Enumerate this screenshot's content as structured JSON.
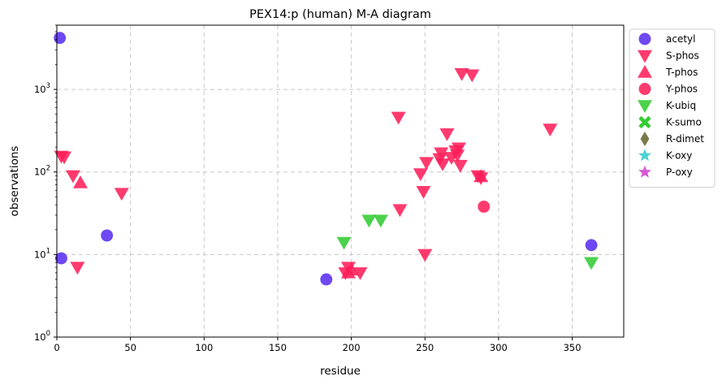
{
  "chart_data": {
    "type": "scatter",
    "title": "PEX14:p (human) M-A diagram",
    "xlabel": "residue",
    "ylabel": "observations",
    "xlim": [
      0,
      385
    ],
    "ylim": [
      1,
      6000
    ],
    "yscale": "log",
    "grid": true,
    "grid_style": "dashed",
    "legend_position": "outside-right",
    "x_ticks": [
      "0",
      "50",
      "100",
      "150",
      "200",
      "250",
      "300",
      "350"
    ],
    "y_ticks": [
      {
        "value": 1,
        "base": "10",
        "exp": "0"
      },
      {
        "value": 10,
        "base": "10",
        "exp": "1"
      },
      {
        "value": 100,
        "base": "10",
        "exp": "2"
      },
      {
        "value": 1000,
        "base": "10",
        "exp": "3"
      }
    ],
    "series": [
      {
        "name": "acetyl",
        "marker": "circle",
        "color": "#5a2ff0",
        "points": [
          [
            2,
            4200
          ],
          [
            3,
            9
          ],
          [
            34,
            17
          ],
          [
            183,
            5
          ],
          [
            363,
            13
          ]
        ]
      },
      {
        "name": "S-phos",
        "marker": "triangle-down",
        "color": "#ff1f5a",
        "points": [
          [
            3,
            155
          ],
          [
            5,
            152
          ],
          [
            11,
            90
          ],
          [
            14,
            7
          ],
          [
            44,
            55
          ],
          [
            196,
            6
          ],
          [
            198,
            7
          ],
          [
            206,
            6
          ],
          [
            232,
            460
          ],
          [
            233,
            35
          ],
          [
            247,
            95
          ],
          [
            249,
            58
          ],
          [
            250,
            10
          ],
          [
            251,
            130
          ],
          [
            260,
            145
          ],
          [
            261,
            170
          ],
          [
            262,
            125
          ],
          [
            265,
            290
          ],
          [
            268,
            150
          ],
          [
            271,
            180
          ],
          [
            272,
            160
          ],
          [
            273,
            195
          ],
          [
            274,
            120
          ],
          [
            275,
            1550
          ],
          [
            282,
            1500
          ],
          [
            286,
            90
          ],
          [
            288,
            85
          ],
          [
            335,
            330
          ]
        ]
      },
      {
        "name": "T-phos",
        "marker": "triangle-up",
        "color": "#ff1f5a",
        "points": [
          [
            16,
            74
          ],
          [
            198,
            6
          ],
          [
            200,
            6.5
          ],
          [
            288,
            88
          ]
        ]
      },
      {
        "name": "Y-phos",
        "marker": "circle",
        "color": "#ff1f5a",
        "points": [
          [
            290,
            38
          ]
        ]
      },
      {
        "name": "K-ubiq",
        "marker": "triangle-down",
        "color": "#33cc33",
        "points": [
          [
            195,
            14
          ],
          [
            212,
            26
          ],
          [
            220,
            26
          ],
          [
            363,
            8
          ]
        ]
      },
      {
        "name": "K-sumo",
        "marker": "x",
        "color": "#33cc33",
        "points": []
      },
      {
        "name": "R-dimet",
        "marker": "diamond",
        "color": "#666633",
        "points": []
      },
      {
        "name": "K-oxy",
        "marker": "star",
        "color": "#33cccc",
        "points": []
      },
      {
        "name": "P-oxy",
        "marker": "star",
        "color": "#cc44cc",
        "points": []
      }
    ]
  }
}
